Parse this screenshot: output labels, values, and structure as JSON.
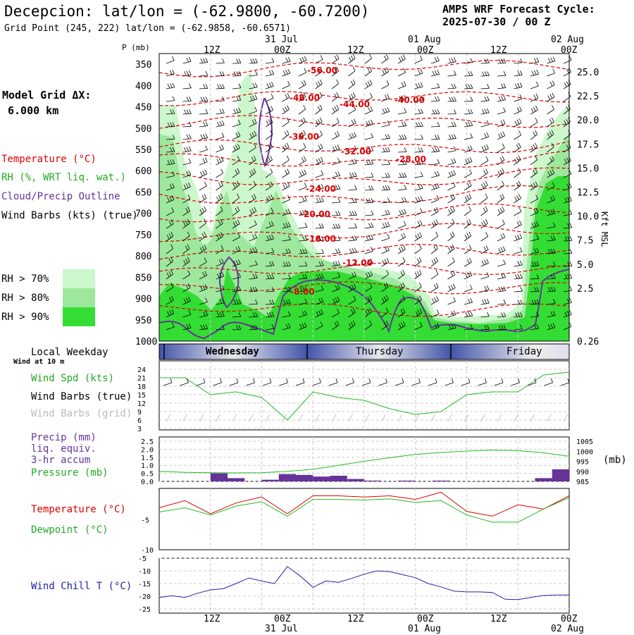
{
  "header": {
    "station_title": "Decepcion:  lat/lon = (-62.9800, -60.7200)",
    "grid_point": "Grid Point (245, 222) lat/lon = (-62.9858, -60.6571)",
    "cycle_label": "AMPS WRF Forecast Cycle:",
    "cycle_value": "2025-07-30 / 00  Z"
  },
  "left_panel": {
    "model_grid_label": "Model Grid ΔX:",
    "model_grid_value": "6.000 km",
    "temperature_legend": "Temperature (°C)",
    "rh_legend": "RH (%, WRT liq. wat.)",
    "cloud_legend": "Cloud/Precip Outline",
    "wind_legend": "Wind Barbs (kts) (true)",
    "rh70": "RH > 70%",
    "rh80": "RH > 80%",
    "rh90": "RH > 90%",
    "local_weekday": "Local Weekday",
    "wind_at_10m": "Wind at 10 m",
    "wind_spd": "Wind Spd (kts)",
    "wind_barbs_true": "Wind Barbs (true)",
    "wind_barbs_grid": "Wind Barbs (grid)",
    "precip_l1": "Precip (mm)",
    "precip_l2": "liq. equiv.",
    "precip_l3": "3-hr accum",
    "pressure_label": "Pressure (mb)",
    "temp_label": "Temperature (°C)",
    "dewpoint_label": "Dewpoint (°C)",
    "windchill_label": "Wind Chill T (°C)",
    "pressure_unit": "(mb)"
  },
  "colors": {
    "temperature": "#dd0000",
    "rh70": "#ccf7cc",
    "rh80": "#9de89d",
    "rh90": "#33dd33",
    "cloud": "#663399",
    "green_line": "#22bb22",
    "blue_line": "#2222aa",
    "precip_bar": "#663399",
    "grey_barb": "#bbbbbb"
  },
  "time_axis": {
    "hours": [
      "12Z",
      "00Z",
      "12Z",
      "00Z",
      "12Z",
      "00Z"
    ],
    "dates": [
      "31 Jul",
      "01 Aug",
      "02 Aug"
    ],
    "weekdays": [
      "Wednesday",
      "Thursday",
      "Friday"
    ]
  },
  "chart_data": [
    {
      "type": "contour",
      "name": "cross-section",
      "pressure_levels_mb": [
        350,
        400,
        450,
        500,
        550,
        600,
        650,
        700,
        750,
        800,
        850,
        900,
        950,
        1000
      ],
      "height_kft_ticks": [
        "25.0",
        "22.5",
        "20.0",
        "17.5",
        "15.0",
        "12.5",
        "10.0",
        "7.5",
        "5.0",
        "2.5",
        "0.26"
      ],
      "y_axis_label": "P (mb)",
      "right_axis_label": "Kft MSL",
      "temperature_contour_labels": [
        "-56.00",
        "-48.00",
        "-44.00",
        "-40.00",
        "-36.00",
        "-32.00",
        "-28.00",
        "-24.00",
        "-20.00",
        "-16.00",
        "-12.00",
        "-8.00"
      ]
    },
    {
      "type": "line",
      "name": "wind-speed",
      "x_hours": [
        0,
        6,
        12,
        18,
        24,
        30,
        36,
        42,
        48,
        54,
        60,
        66,
        72,
        78,
        84,
        90,
        96
      ],
      "values": [
        21,
        21,
        15,
        16,
        14,
        6,
        16,
        14,
        13,
        10,
        8,
        9,
        15,
        16,
        16,
        22,
        23
      ],
      "yticks": [
        "24",
        "21",
        "18",
        "15",
        "12",
        "9",
        "6",
        "3"
      ]
    },
    {
      "type": "bar+line",
      "name": "precip-pressure",
      "precip_yticks": [
        "2.5",
        "2.0",
        "1.5",
        "1.0",
        "0.5",
        "0.0"
      ],
      "pressure_yticks": [
        "1005",
        "1000",
        "995",
        "990",
        "985"
      ],
      "precip_mm": [
        0.0,
        0.0,
        0.0,
        0.5,
        0.2,
        0.0,
        0.1,
        0.45,
        0.4,
        0.3,
        0.35,
        0.15,
        0.05,
        0.0,
        0.05,
        0.0,
        0.05,
        0.0,
        0.0,
        0.0,
        0.0,
        0.0,
        0.2,
        0.75
      ],
      "pressure_hours": [
        0,
        6,
        12,
        18,
        24,
        30,
        36,
        42,
        48,
        54,
        60,
        66,
        72,
        78,
        84,
        90,
        96
      ],
      "pressure_mb": [
        990.0,
        989.5,
        989.3,
        989.2,
        989.3,
        990.0,
        991.0,
        993.0,
        995.0,
        996.8,
        998.4,
        999.4,
        1000.1,
        1000.5,
        1000.3,
        999.2,
        997.5
      ]
    },
    {
      "type": "line",
      "name": "temperature-dewpoint",
      "yticks": [
        "-5",
        "-10"
      ],
      "x_hours": [
        0,
        6,
        12,
        18,
        24,
        30,
        36,
        42,
        48,
        54,
        60,
        66,
        72,
        78,
        84,
        90,
        96
      ],
      "temperature": [
        -3.0,
        -1.8,
        -4.0,
        -2.2,
        -1.2,
        -4.0,
        -1.0,
        -1.0,
        -1.2,
        -1.0,
        -1.6,
        -0.4,
        -3.6,
        -4.4,
        -2.5,
        -3.2,
        -1.0
      ],
      "dewpoint": [
        -3.7,
        -3.0,
        -4.2,
        -2.7,
        -2.0,
        -4.4,
        -1.6,
        -1.6,
        -1.7,
        -1.5,
        -2.1,
        -1.8,
        -4.2,
        -5.4,
        -5.4,
        -3.2,
        -1.3
      ]
    },
    {
      "type": "line",
      "name": "wind-chill",
      "yticks": [
        "-5",
        "-10",
        "-15",
        "-20",
        "-25"
      ],
      "x_hours": [
        0,
        3,
        6,
        9,
        12,
        15,
        18,
        21,
        24,
        27,
        30,
        33,
        36,
        39,
        42,
        45,
        48,
        51,
        54,
        57,
        60,
        63,
        66,
        69,
        72,
        75,
        78,
        81,
        84,
        87,
        90,
        93,
        96
      ],
      "values": [
        -20.5,
        -19.8,
        -20.5,
        -18.8,
        -17.5,
        -17.0,
        -15.0,
        -12.8,
        -14.0,
        -15.0,
        -8.3,
        -12.0,
        -16.5,
        -14.0,
        -14.5,
        -13.0,
        -11.3,
        -10.0,
        -10.3,
        -11.5,
        -12.7,
        -15.0,
        -16.3,
        -18.0,
        -18.3,
        -18.3,
        -18.5,
        -21.2,
        -21.3,
        -20.5,
        -19.7,
        -19.5,
        -19.5
      ]
    }
  ]
}
